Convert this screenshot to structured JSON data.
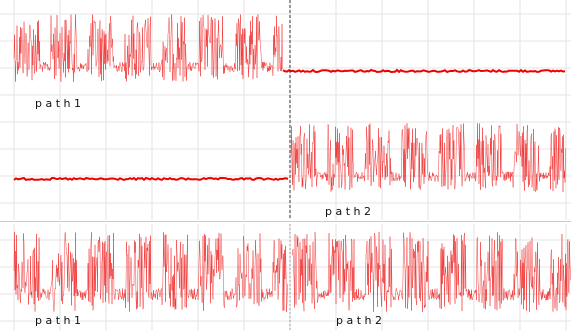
{
  "panels": [
    {
      "labels": [
        "p a t h 1",
        "p a t h 2"
      ]
    },
    {
      "labels": [
        "p a t h 1",
        "p a t h 2"
      ]
    }
  ]
}
